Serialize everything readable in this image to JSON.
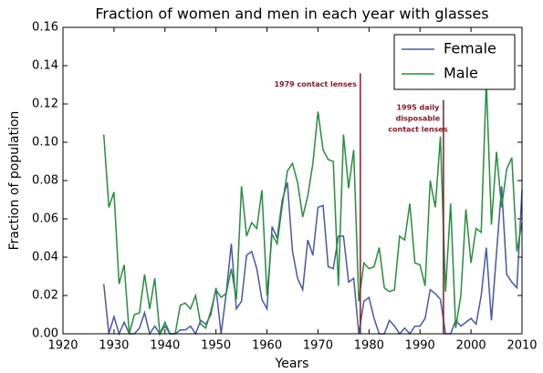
{
  "chart_data": {
    "type": "line",
    "title": "Fraction of women and men in each year with glasses",
    "xlabel": "Years",
    "ylabel": "Fraction of population",
    "x": [
      1928,
      1929,
      1930,
      1931,
      1932,
      1933,
      1934,
      1935,
      1936,
      1937,
      1938,
      1939,
      1940,
      1941,
      1942,
      1943,
      1944,
      1945,
      1946,
      1947,
      1948,
      1949,
      1950,
      1951,
      1952,
      1953,
      1954,
      1955,
      1956,
      1957,
      1958,
      1959,
      1960,
      1961,
      1962,
      1963,
      1964,
      1965,
      1966,
      1967,
      1968,
      1969,
      1970,
      1971,
      1972,
      1973,
      1974,
      1975,
      1976,
      1977,
      1978,
      1979,
      1980,
      1981,
      1982,
      1983,
      1984,
      1985,
      1986,
      1987,
      1988,
      1989,
      1990,
      1991,
      1992,
      1993,
      1994,
      1995,
      1996,
      1997,
      1998,
      1999,
      2000,
      2001,
      2002,
      2003,
      2004,
      2005,
      2006,
      2007,
      2008,
      2009,
      2010
    ],
    "series": [
      {
        "name": "Female",
        "color": "#4659a6",
        "values": [
          0.026,
          0,
          0.009,
          0,
          0.006,
          0,
          0,
          0.003,
          0.011,
          0,
          0.004,
          0,
          0.004,
          0,
          0,
          0.002,
          0.002,
          0.004,
          0,
          0.007,
          0.005,
          0.01,
          0.024,
          0,
          0.021,
          0.047,
          0.013,
          0.017,
          0.041,
          0.043,
          0.034,
          0.018,
          0.013,
          0.056,
          0.05,
          0.07,
          0.079,
          0.043,
          0.029,
          0.023,
          0.049,
          0.041,
          0.066,
          0.067,
          0.035,
          0.034,
          0.051,
          0.051,
          0.027,
          0.029,
          0,
          0.017,
          0.019,
          0.008,
          0,
          0,
          0.007,
          0.004,
          0,
          0.003,
          0,
          0.004,
          0.004,
          0.008,
          0.023,
          0.021,
          0.018,
          0,
          0,
          0.007,
          0.004,
          0.006,
          0.008,
          0.005,
          0.02,
          0.045,
          0.007,
          0.042,
          0.077,
          0.031,
          0.027,
          0.024,
          0.075
        ]
      },
      {
        "name": "Male",
        "color": "#23913a",
        "values": [
          0.104,
          0.066,
          0.074,
          0.026,
          0.036,
          0,
          0.01,
          0.011,
          0.031,
          0.013,
          0.029,
          0,
          0.006,
          0,
          0,
          0.015,
          0.016,
          0.013,
          0.02,
          0.005,
          0.003,
          0.012,
          0.023,
          0.019,
          0.021,
          0.034,
          0.018,
          0.077,
          0.051,
          0.058,
          0.055,
          0.075,
          0.02,
          0.052,
          0.047,
          0.067,
          0.085,
          0.089,
          0.079,
          0.061,
          0.072,
          0.089,
          0.116,
          0.096,
          0.091,
          0.09,
          0.025,
          0.104,
          0.076,
          0.096,
          0.017,
          0.037,
          0.034,
          0.035,
          0.045,
          0.024,
          0.022,
          0.023,
          0.051,
          0.049,
          0.068,
          0.037,
          0.036,
          0.025,
          0.08,
          0.066,
          0.103,
          0.022,
          0.068,
          0.003,
          0.02,
          0.065,
          0.037,
          0.055,
          0.053,
          0.132,
          0.057,
          0.095,
          0.066,
          0.086,
          0.092,
          0.043,
          0.058
        ]
      }
    ],
    "annotations": [
      {
        "lines": [
          "1979 contact lenses"
        ],
        "x": 1978.3,
        "y": 0.136,
        "color": "#8b1a2b"
      },
      {
        "lines": [
          "1995 daily",
          "disposable",
          "contact lenses"
        ],
        "x": 1994.6,
        "y": 0.122,
        "color": "#8b1a2b"
      }
    ],
    "xlim": [
      1920,
      2010
    ],
    "xticks": [
      1920,
      1930,
      1940,
      1950,
      1960,
      1970,
      1980,
      1990,
      2000,
      2010
    ],
    "ylim": [
      0,
      0.16
    ],
    "yticks": [
      {
        "value": 0,
        "label": "0.00"
      },
      {
        "value": 0.02,
        "label": "0.02"
      },
      {
        "value": 0.04,
        "label": "0.04"
      },
      {
        "value": 0.06,
        "label": "0.06"
      },
      {
        "value": 0.08,
        "label": "0.08"
      },
      {
        "value": 0.1,
        "label": "0.10"
      },
      {
        "value": 0.12,
        "label": "0.12"
      },
      {
        "value": 0.14,
        "label": "0.14"
      },
      {
        "value": 0.16,
        "label": "0.16"
      }
    ],
    "legend": "upper right",
    "grid": false
  }
}
